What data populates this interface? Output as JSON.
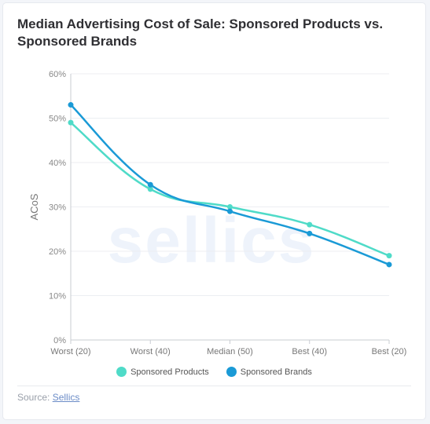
{
  "title": "Median Advertising Cost of Sale: Sponsored Products vs. Sponsored Brands",
  "source": {
    "label": "Source:",
    "link_text": "Sellics"
  },
  "watermark": "sellics",
  "colors": {
    "sponsored_products": "#4fdbc8",
    "sponsored_brands": "#1a9ad6"
  },
  "chart_data": {
    "type": "line",
    "title": "Median Advertising Cost of Sale: Sponsored Products vs. Sponsored Brands",
    "xlabel": "",
    "ylabel": "ACoS",
    "categories": [
      "Worst (20)",
      "Worst (40)",
      "Median (50)",
      "Best (40)",
      "Best (20)"
    ],
    "y_ticks": [
      "0%",
      "10%",
      "20%",
      "30%",
      "40%",
      "50%",
      "60%"
    ],
    "ylim": [
      0,
      60
    ],
    "grid": true,
    "legend": "bottom",
    "series": [
      {
        "name": "Sponsored Products",
        "values": [
          49,
          34,
          30,
          26,
          19
        ]
      },
      {
        "name": "Sponsored Brands",
        "values": [
          53,
          35,
          29,
          24,
          17
        ]
      }
    ]
  }
}
